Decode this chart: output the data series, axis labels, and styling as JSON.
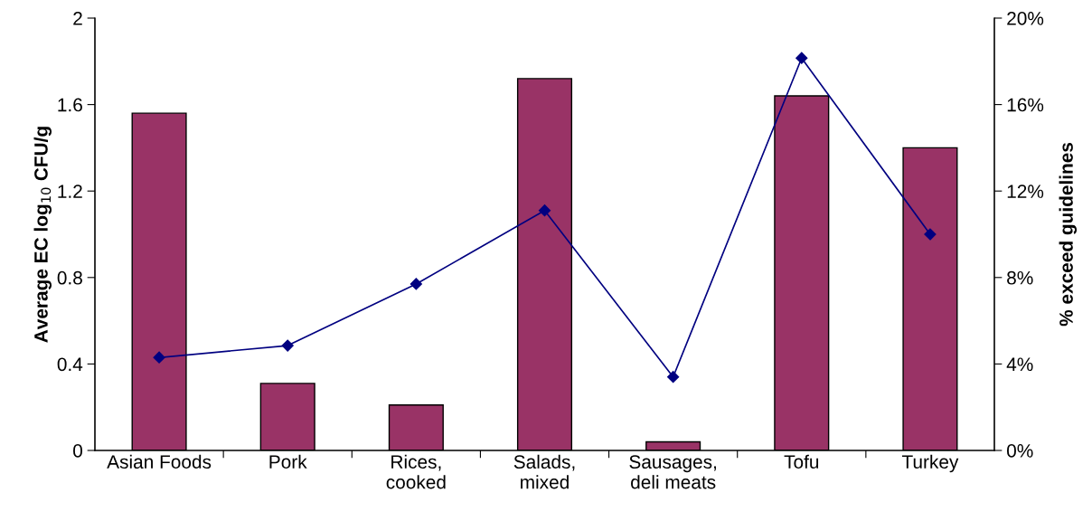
{
  "chart_data": {
    "type": "bar",
    "categories": [
      "Asian Foods",
      "Pork",
      "Rices,\ncooked",
      "Salads,\nmixed",
      "Sausages,\ndeli meats",
      "Tofu",
      "Turkey"
    ],
    "ylabel": "Average EC log$_{10}$ CFU/g",
    "y2label": "% exceed guidelines",
    "ylim": [
      0,
      2
    ],
    "yticks": [
      0,
      0.4,
      0.8,
      1.2,
      1.6,
      2
    ],
    "y2lim": [
      0,
      20
    ],
    "y2ticks": [
      {
        "value": 0,
        "label": "0%"
      },
      {
        "value": 4,
        "label": "4%"
      },
      {
        "value": 8,
        "label": "8%"
      },
      {
        "value": 12,
        "label": "12%"
      },
      {
        "value": 16,
        "label": "16%"
      },
      {
        "value": 20,
        "label": "20%"
      }
    ],
    "grid": false,
    "legend": false,
    "series": [
      {
        "color": "#993366",
        "values": [
          1.56,
          0.31,
          0.21,
          1.72,
          0.04,
          1.64,
          1.4
        ]
      },
      {
        "type": "line",
        "axis": "y2",
        "color": "#000080",
        "marker": "diamond",
        "line_style": "solid",
        "values": [
          4.3,
          4.85,
          7.7,
          11.1,
          3.4,
          18.15,
          10.0
        ]
      }
    ]
  }
}
